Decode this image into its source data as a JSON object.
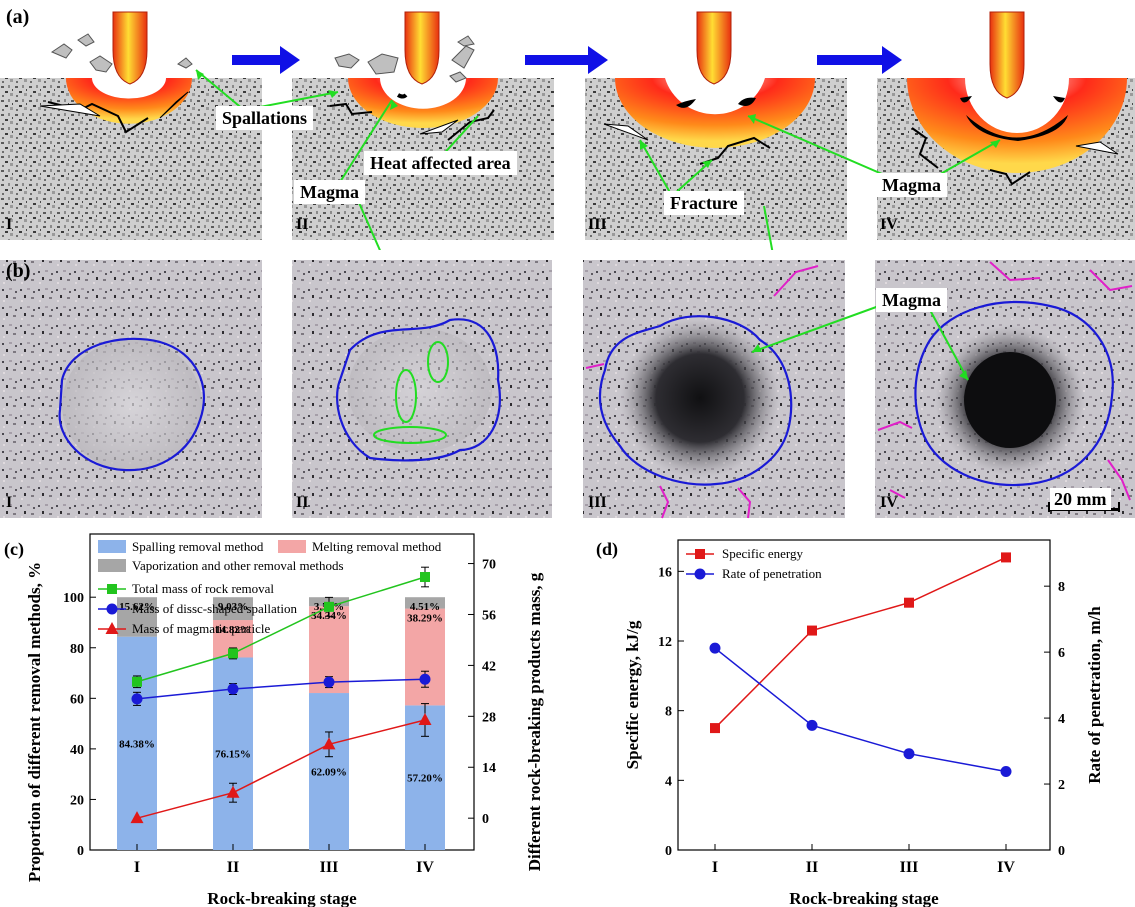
{
  "panel_labels": {
    "a": "(a)",
    "b": "(b)",
    "c": "(c)",
    "d": "(d)"
  },
  "stages": [
    "I",
    "II",
    "III",
    "IV"
  ],
  "annotations": {
    "spallations": "Spallations",
    "heat_affected": "Heat affected area",
    "magma_a2": "Magma",
    "fracture": "Fracture",
    "magma_a4": "Magma",
    "magma_b": "Magma"
  },
  "scale_bar": "20 mm",
  "colors": {
    "spalling": "#8db3ea",
    "melting": "#f3a6a6",
    "vaporization": "#a6a6a6",
    "total_mass": "#22c41e",
    "dissc_mass": "#1a1ad6",
    "magmatic_mass": "#e01818",
    "specific_energy": "#e01818",
    "rate_penetration": "#1a1ad6",
    "arrow": "#1010e6",
    "callout": "#22dd22",
    "crater_outline": "#1a1ad6",
    "crack": "#e020c8"
  },
  "chart_data": [
    {
      "type": "bar",
      "panel": "(c)",
      "categories": [
        "I",
        "II",
        "III",
        "IV"
      ],
      "xlabel": "Rock-breaking stage",
      "ylabel": "Proportion of different removal methods, %",
      "ylabel_right": "Different rock-breaking products mass, g",
      "ylim": [
        0,
        125
      ],
      "yticks": [
        0,
        20,
        40,
        60,
        80,
        100
      ],
      "ylim_right": [
        -8.75,
        78.125
      ],
      "yticks_right": [
        0,
        14,
        28,
        42,
        56,
        70
      ],
      "stacked_series": [
        {
          "name": "Spalling removal method",
          "values": [
            84.38,
            76.15,
            62.09,
            57.2
          ],
          "labels": [
            "84.38%",
            "76.15%",
            "62.09%",
            "57.20%"
          ]
        },
        {
          "name": "Melting removal method",
          "values": [
            0,
            14.82,
            34.34,
            38.29
          ],
          "labels": [
            "",
            "14.82%",
            "34.34%",
            "38.29%"
          ]
        },
        {
          "name": "Vaporization and other removal methods",
          "values": [
            15.62,
            9.03,
            3.57,
            4.51
          ],
          "labels": [
            "15.62%",
            "9.03%",
            "3.57%",
            "4.51%"
          ]
        }
      ],
      "line_series": [
        {
          "name": "Total mass of rock removal",
          "axis": "right",
          "marker": "square",
          "values": [
            37.5,
            45.3,
            58.1,
            66.3
          ],
          "errors": [
            1.6,
            1.5,
            2.6,
            2.7
          ]
        },
        {
          "name": "Mass of dissc-shaped spallation",
          "axis": "right",
          "marker": "circle",
          "values": [
            32.8,
            35.5,
            37.4,
            38.2
          ],
          "errors": [
            1.8,
            1.5,
            1.5,
            2.2
          ]
        },
        {
          "name": "Mass of magmatic particle",
          "axis": "right",
          "marker": "triangle",
          "values": [
            0,
            7.0,
            20.3,
            27.0
          ],
          "errors": [
            0,
            2.6,
            3.4,
            4.5
          ]
        }
      ],
      "legend": "top"
    },
    {
      "type": "line",
      "panel": "(d)",
      "categories": [
        "I",
        "II",
        "III",
        "IV"
      ],
      "xlabel": "Rock-breaking stage",
      "ylabel": "Specific energy, kJ/g",
      "ylabel_right": "Rate of penetration, m/h",
      "ylim": [
        0,
        17.8
      ],
      "yticks": [
        0,
        4,
        8,
        12,
        16
      ],
      "ylim_right": [
        0,
        9.4
      ],
      "yticks_right": [
        0,
        2,
        4,
        6,
        8
      ],
      "series": [
        {
          "name": "Specific energy",
          "axis": "left",
          "marker": "square",
          "values": [
            7.0,
            12.6,
            14.2,
            16.8
          ]
        },
        {
          "name": "Rate of penetration",
          "axis": "right",
          "marker": "circle",
          "values": [
            6.12,
            3.78,
            2.92,
            2.38
          ]
        }
      ],
      "legend": "top-left"
    }
  ]
}
